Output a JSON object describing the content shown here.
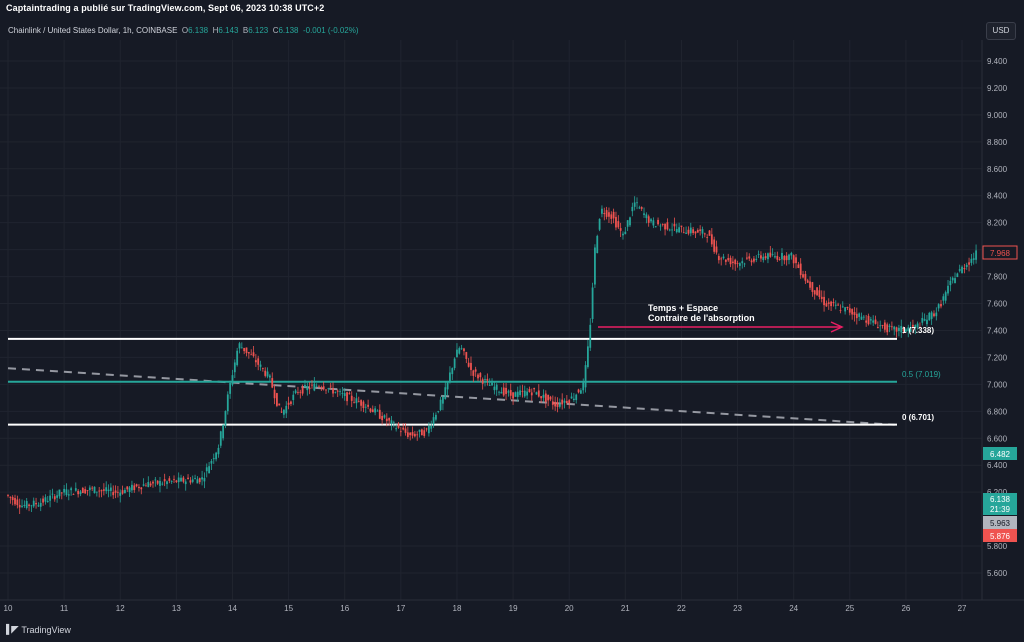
{
  "header": {
    "publisher": "Captaintrading a publié sur TradingView.com, Sept 06, 2023 10:38 UTC+2",
    "symbol": "Chainlink / United States Dollar, 1h, COINBASE",
    "o_label": "O",
    "o_value": "6.138",
    "h_label": "H",
    "h_value": "6.143",
    "l_label": "B",
    "l_value": "6.123",
    "c_label": "C",
    "c_value": "6.138",
    "change": "-0.001 (-0.02%)",
    "currency": "USD"
  },
  "footer": {
    "brand": "TradingView",
    "logo_icon": "tradingview-logo-icon"
  },
  "annotation": {
    "line1": "Temps + Espace",
    "line2": "Contraire de l'absorption",
    "arrow_icon": "arrow-right-icon"
  },
  "fib_labels": {
    "top": "1 (7.338)",
    "mid": "0.5 (7.019)",
    "bottom": "0 (6.701)"
  },
  "price_badges": {
    "last": "7.968",
    "level": "6.482",
    "current": "6.138",
    "countdown": "21:39",
    "grey": "5.963",
    "red": "5.876"
  },
  "colors": {
    "bg": "#161a25",
    "up": "#26a69a",
    "down": "#ef5350",
    "fib_mid": "#26a69a",
    "arrow": "#e91e63",
    "grid": "#222631"
  },
  "chart_data": {
    "type": "candlestick",
    "y_ticks": [
      "9.400",
      "9.200",
      "9.000",
      "8.800",
      "8.600",
      "8.400",
      "8.200",
      "8.000",
      "7.800",
      "7.600",
      "7.400",
      "7.200",
      "7.000",
      "6.800",
      "6.600",
      "6.400",
      "6.200",
      "5.800",
      "5.600"
    ],
    "x_ticks": [
      "10",
      "11",
      "12",
      "13",
      "14",
      "15",
      "16",
      "17",
      "18",
      "19",
      "20",
      "21",
      "22",
      "23",
      "24",
      "25",
      "26",
      "27"
    ],
    "ylim": [
      5.4,
      9.5
    ],
    "xlim": [
      10,
      27.4
    ],
    "levels": {
      "fib_1": 7.338,
      "fib_05": 7.019,
      "fib_0": 6.701
    },
    "trendline": {
      "start": [
        10,
        7.12
      ],
      "end": [
        25.8,
        6.7
      ]
    },
    "path": [
      [
        10.0,
        6.18
      ],
      [
        10.3,
        6.1
      ],
      [
        10.6,
        6.12
      ],
      [
        11.0,
        6.2
      ],
      [
        11.5,
        6.22
      ],
      [
        12.0,
        6.2
      ],
      [
        12.5,
        6.26
      ],
      [
        13.0,
        6.28
      ],
      [
        13.5,
        6.3
      ],
      [
        13.8,
        6.55
      ],
      [
        14.0,
        7.0
      ],
      [
        14.15,
        7.3
      ],
      [
        14.4,
        7.2
      ],
      [
        14.7,
        7.05
      ],
      [
        14.9,
        6.78
      ],
      [
        15.2,
        6.95
      ],
      [
        15.6,
        7.0
      ],
      [
        16.0,
        6.92
      ],
      [
        16.4,
        6.85
      ],
      [
        16.9,
        6.7
      ],
      [
        17.2,
        6.62
      ],
      [
        17.5,
        6.65
      ],
      [
        17.8,
        6.9
      ],
      [
        18.0,
        7.2
      ],
      [
        18.1,
        7.28
      ],
      [
        18.3,
        7.1
      ],
      [
        18.6,
        7.0
      ],
      [
        19.0,
        6.92
      ],
      [
        19.4,
        6.95
      ],
      [
        19.8,
        6.85
      ],
      [
        20.1,
        6.9
      ],
      [
        20.3,
        7.0
      ],
      [
        20.4,
        7.35
      ],
      [
        20.5,
        8.0
      ],
      [
        20.6,
        8.3
      ],
      [
        20.8,
        8.25
      ],
      [
        21.0,
        8.1
      ],
      [
        21.2,
        8.35
      ],
      [
        21.5,
        8.2
      ],
      [
        22.0,
        8.15
      ],
      [
        22.5,
        8.12
      ],
      [
        22.7,
        7.95
      ],
      [
        23.0,
        7.9
      ],
      [
        23.5,
        7.95
      ],
      [
        24.0,
        7.95
      ],
      [
        24.3,
        7.75
      ],
      [
        24.6,
        7.6
      ],
      [
        25.0,
        7.55
      ],
      [
        25.5,
        7.45
      ],
      [
        25.8,
        7.4
      ],
      [
        26.2,
        7.42
      ],
      [
        26.6,
        7.55
      ],
      [
        26.9,
        7.8
      ],
      [
        27.3,
        7.97
      ]
    ]
  }
}
